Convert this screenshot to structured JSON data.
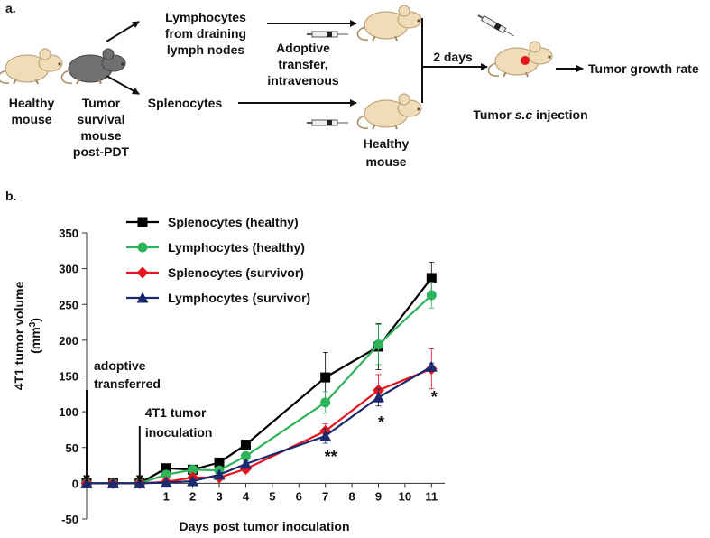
{
  "diagram": {
    "panel_label": "a.",
    "donor_healthy": [
      "Healthy",
      "mouse"
    ],
    "donor_survivor": [
      "Tumor",
      "survival",
      "mouse",
      "post-PDT"
    ],
    "lymphocytes": [
      "Lymphocytes",
      "from draining",
      "lymph nodes"
    ],
    "splenocytes": "Splenocytes",
    "transfer": [
      "Adoptive",
      "transfer,",
      "intravenous"
    ],
    "recipient": [
      "Healthy",
      "mouse"
    ],
    "delay": "2 days",
    "injection": [
      "Tumor ",
      "s.c",
      " injection"
    ],
    "outcome": "Tumor growth rate"
  },
  "chart_data": {
    "type": "line",
    "panel_label": "b.",
    "xlabel": "Days post tumor inoculation",
    "ylabel": [
      "4T1 tumor volume",
      "(mm",
      "3",
      ")"
    ],
    "x": [
      -2,
      -1,
      0,
      1,
      2,
      3,
      4,
      7,
      9,
      11
    ],
    "xlim": [
      -2,
      11.5
    ],
    "xticks": [
      1,
      2,
      3,
      4,
      5,
      6,
      7,
      8,
      9,
      10,
      11
    ],
    "ylim": [
      -50,
      350
    ],
    "yticks": [
      -50,
      0,
      50,
      100,
      150,
      200,
      250,
      300,
      350
    ],
    "series": [
      {
        "name": "Splenocytes (healthy)",
        "color": "#000000",
        "marker": "square",
        "values": [
          0,
          0,
          0,
          21,
          19,
          29,
          54,
          148,
          191,
          287
        ],
        "errors": [
          null,
          null,
          null,
          3,
          3,
          4,
          5,
          35,
          32,
          22
        ]
      },
      {
        "name": "Lymphocytes (healthy)",
        "color": "#2db35a",
        "marker": "circle",
        "values": [
          0,
          0,
          0,
          12,
          19,
          18,
          38,
          113,
          194,
          263
        ],
        "errors": [
          null,
          null,
          null,
          3,
          4,
          4,
          5,
          15,
          28,
          18
        ]
      },
      {
        "name": "Splenocytes (survivor)",
        "color": "#e8141c",
        "marker": "diamond",
        "values": [
          0,
          0,
          0,
          2,
          8,
          8,
          20,
          73,
          130,
          160
        ],
        "errors": [
          null,
          null,
          null,
          2,
          3,
          4,
          5,
          10,
          22,
          28
        ]
      },
      {
        "name": "Lymphocytes (survivor)",
        "color": "#1b2a6e",
        "marker": "triangle",
        "values": [
          0,
          0,
          0,
          1,
          3,
          12,
          27,
          66,
          120,
          163
        ],
        "errors": [
          null,
          null,
          null,
          2,
          2,
          3,
          4,
          10,
          12,
          5
        ]
      }
    ],
    "annotations": [
      {
        "text": [
          "adoptive",
          "transferred"
        ],
        "x": -2
      },
      {
        "text": [
          "4T1 tumor",
          "inoculation"
        ],
        "x": 0
      },
      {
        "text": "**",
        "x": 7
      },
      {
        "text": "*",
        "x": 9
      },
      {
        "text": "*",
        "x": 11
      }
    ]
  }
}
